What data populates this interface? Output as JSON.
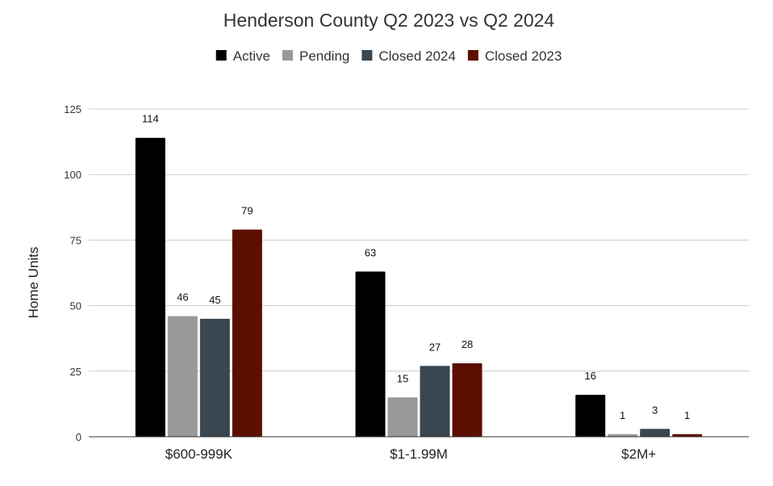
{
  "chart_data": {
    "type": "bar",
    "title": "Henderson County Q2 2023 vs Q2 2024",
    "xlabel": "",
    "ylabel": "Home Units",
    "ylim": [
      0,
      125
    ],
    "yticks": [
      0,
      25,
      50,
      75,
      100,
      125
    ],
    "grid": true,
    "legend_position": "top",
    "categories": [
      "$600-999K",
      "$1-1.99M",
      "$2M+"
    ],
    "series": [
      {
        "name": "Active",
        "color": "#000000",
        "values": [
          114,
          63,
          16
        ]
      },
      {
        "name": "Pending",
        "color": "#999999",
        "values": [
          46,
          15,
          1
        ]
      },
      {
        "name": "Closed 2024",
        "color": "#3a4650",
        "values": [
          45,
          27,
          3
        ]
      },
      {
        "name": "Closed 2023",
        "color": "#5b0f00",
        "values": [
          79,
          28,
          1
        ]
      }
    ]
  }
}
